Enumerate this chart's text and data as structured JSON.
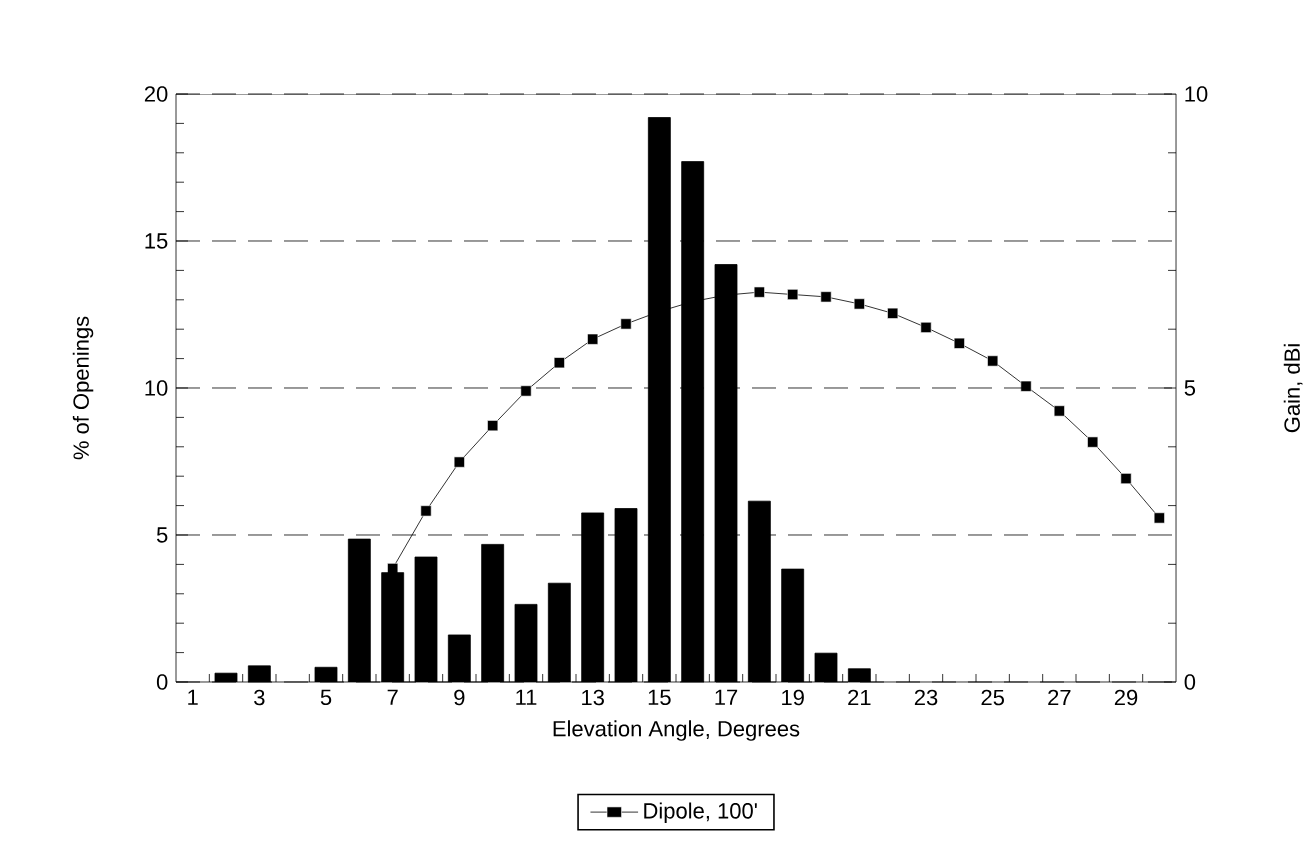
{
  "chart_data": {
    "type": "bar",
    "xlabel": "Elevation Angle, Degrees",
    "ylabel": "% of Openings",
    "y2label": "Gain, dBi",
    "xlim": [
      0.5,
      30.5
    ],
    "xticks": [
      {
        "value": 1,
        "label": "1"
      },
      {
        "value": 3,
        "label": "3"
      },
      {
        "value": 5,
        "label": "5"
      },
      {
        "value": 7,
        "label": "7"
      },
      {
        "value": 9,
        "label": "9"
      },
      {
        "value": 11,
        "label": "11"
      },
      {
        "value": 13,
        "label": "13"
      },
      {
        "value": 15,
        "label": "15"
      },
      {
        "value": 17,
        "label": "17"
      },
      {
        "value": 19,
        "label": "19"
      },
      {
        "value": 21,
        "label": "21"
      },
      {
        "value": 23,
        "label": "23"
      },
      {
        "value": 25,
        "label": "25"
      },
      {
        "value": 27,
        "label": "27"
      },
      {
        "value": 29,
        "label": "29"
      },
      {
        "value": 1.5,
        "label": null
      },
      {
        "value": 2.5,
        "label": null
      },
      {
        "value": 3.5,
        "label": null
      },
      {
        "value": 4.5,
        "label": null
      },
      {
        "value": 5.5,
        "label": null
      },
      {
        "value": 6.5,
        "label": null
      },
      {
        "value": 7.5,
        "label": null
      },
      {
        "value": 8.5,
        "label": null
      },
      {
        "value": 9.5,
        "label": null
      },
      {
        "value": 10.5,
        "label": null
      },
      {
        "value": 11.5,
        "label": null
      },
      {
        "value": 12.5,
        "label": null
      },
      {
        "value": 13.5,
        "label": null
      },
      {
        "value": 14.5,
        "label": null
      },
      {
        "value": 15.5,
        "label": null
      },
      {
        "value": 16.5,
        "label": null
      },
      {
        "value": 17.5,
        "label": null
      },
      {
        "value": 18.5,
        "label": null
      },
      {
        "value": 19.5,
        "label": null
      },
      {
        "value": 20.5,
        "label": null
      },
      {
        "value": 21.5,
        "label": null
      },
      {
        "value": 22.5,
        "label": null
      },
      {
        "value": 23.5,
        "label": null
      },
      {
        "value": 24.5,
        "label": null
      },
      {
        "value": 25.5,
        "label": null
      },
      {
        "value": 26.5,
        "label": null
      },
      {
        "value": 27.5,
        "label": null
      },
      {
        "value": 28.5,
        "label": null
      },
      {
        "value": 29.5,
        "label": null
      }
    ],
    "ylim": [
      0,
      20
    ],
    "yticks": [
      0,
      5,
      10,
      15,
      20
    ],
    "y2lim": [
      0,
      10
    ],
    "y2ticks": [
      0,
      5,
      10
    ],
    "grid": "y",
    "legend": "bottom",
    "series": [
      {
        "color": "#000000",
        "x": [
          2,
          3,
          5,
          6,
          7,
          8,
          9,
          10,
          11,
          12,
          13,
          14,
          15,
          16,
          17,
          18,
          19,
          20,
          21
        ],
        "values": [
          0.3,
          0.55,
          0.5,
          4.86,
          3.72,
          4.25,
          1.6,
          4.68,
          2.64,
          3.36,
          5.75,
          5.9,
          19.2,
          17.7,
          14.2,
          6.15,
          3.84,
          0.98,
          0.45
        ]
      },
      {
        "type": "line",
        "name": "Dipole, 100'",
        "color": "#000000",
        "axis": "y2",
        "marker": "square",
        "line_style": "solid",
        "x": [
          7,
          8,
          9,
          10,
          11,
          12,
          13,
          14,
          15,
          16,
          17,
          18,
          19,
          20,
          21,
          22,
          23,
          24,
          25,
          26,
          27,
          28,
          29,
          30
        ],
        "values": [
          1.93,
          2.91,
          3.74,
          4.36,
          4.95,
          5.43,
          5.83,
          6.09,
          6.3,
          6.47,
          6.58,
          6.63,
          6.59,
          6.55,
          6.43,
          6.27,
          6.03,
          5.76,
          5.46,
          5.03,
          4.61,
          4.08,
          3.46,
          2.79
        ]
      }
    ]
  }
}
